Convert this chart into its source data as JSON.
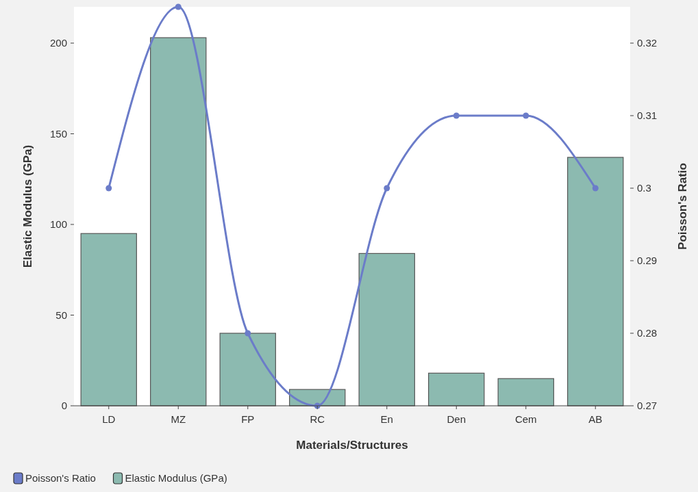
{
  "chart_data": {
    "type": "bar",
    "xlabel": "Materials/Structures",
    "ylabel": "Elastic Modulus (GPa)",
    "y2label": "Poisson's Ratio",
    "categories": [
      "LD",
      "MZ",
      "FP",
      "RC",
      "En",
      "Den",
      "Cem",
      "AB"
    ],
    "series": [
      {
        "name": "Poisson's Ratio",
        "type": "line",
        "axis": "y2",
        "color": "#6b7cc9",
        "marker": "circle",
        "values": [
          0.3,
          0.325,
          0.28,
          0.27,
          0.3,
          0.31,
          0.31,
          0.3
        ]
      },
      {
        "name": "Elastic Modulus (GPa)",
        "color": "#8cbab0",
        "values": [
          95,
          203,
          40,
          9,
          84,
          18,
          15,
          137
        ]
      }
    ],
    "ylim": [
      0,
      220
    ],
    "yticks": [
      0,
      50,
      100,
      150,
      200
    ],
    "y2lim": [
      0.27,
      0.325
    ],
    "y2ticks": [
      0.27,
      0.28,
      0.29,
      0.3,
      0.31,
      0.32
    ],
    "grid": false,
    "legend": "bottom left"
  }
}
